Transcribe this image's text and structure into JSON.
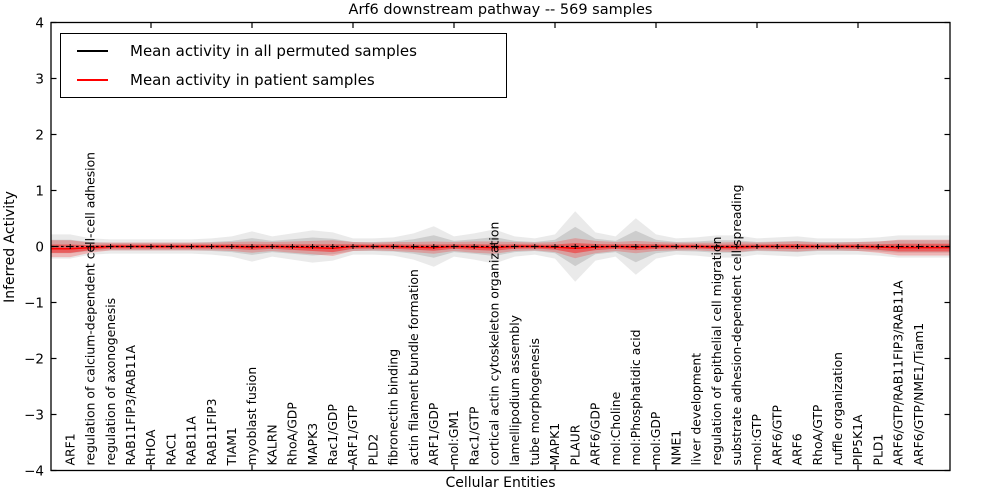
{
  "chart_data": {
    "type": "line",
    "title": "Arf6 downstream pathway -- 569 samples",
    "xlabel": "Cellular Entities",
    "ylabel": "Inferred Activity",
    "ylim": [
      -4,
      4
    ],
    "yticks": [
      -4,
      -3,
      -2,
      -1,
      0,
      1,
      2,
      3,
      4
    ],
    "xtick_positions": [
      5,
      10,
      15,
      20,
      25,
      30,
      35,
      40
    ],
    "grid": false,
    "legend_position": "upper-left",
    "legend": [
      {
        "label": "Mean activity in all permuted samples",
        "color": "#000000"
      },
      {
        "label": "Mean activity in patient samples",
        "color": "#ff0000"
      }
    ],
    "categories": [
      "ARF1",
      "regulation of calcium-dependent cell-cell adhesion",
      "regulation of axonogenesis",
      "RAB11FIP3/RAB11A",
      "RHOA",
      "RAC1",
      "RAB11A",
      "RAB11FIP3",
      "TIAM1",
      "myoblast fusion",
      "KALRN",
      "RhoA/GDP",
      "MAPK3",
      "Rac1/GDP",
      "ARF1/GTP",
      "PLD2",
      "fibronectin binding",
      "actin filament bundle formation",
      "ARF1/GDP",
      "mol:GM1",
      "Rac1/GTP",
      "cortical actin cytoskeleton organization",
      "lamellipodium assembly",
      "tube morphogenesis",
      "MAPK1",
      "PLAUR",
      "ARF6/GDP",
      "mol:Choline",
      "mol:Phosphatidic acid",
      "mol:GDP",
      "NME1",
      "liver development",
      "regulation of epithelial cell migration",
      "substrate adhesion-dependent cell spreading",
      "mol:GTP",
      "ARF6/GTP",
      "ARF6",
      "RhoA/GTP",
      "ruffle organization",
      "PIP5K1A",
      "PLD1",
      "ARF6/GTP/RAB11FIP3/RAB11A",
      "ARF6/GTP/NME1/Tiam1"
    ],
    "series": [
      {
        "name": "Mean activity in all permuted samples",
        "color": "#000000",
        "style": "dashed-with-plus-markers",
        "values": [
          0,
          0,
          0,
          0,
          0,
          0,
          0,
          0,
          0,
          0,
          0,
          0,
          0,
          0,
          0,
          0,
          0,
          0,
          0,
          0,
          0,
          0,
          0,
          0,
          0,
          0,
          0,
          0,
          0,
          0,
          0,
          0,
          0,
          0,
          0,
          0,
          0,
          0,
          0,
          0,
          0,
          0,
          0
        ],
        "band": [
          0.12,
          0.08,
          0.07,
          0.07,
          0.07,
          0.07,
          0.07,
          0.08,
          0.1,
          0.15,
          0.1,
          0.13,
          0.16,
          0.14,
          0.08,
          0.08,
          0.09,
          0.13,
          0.2,
          0.1,
          0.13,
          0.17,
          0.1,
          0.08,
          0.12,
          0.35,
          0.14,
          0.1,
          0.28,
          0.12,
          0.08,
          0.09,
          0.11,
          0.11,
          0.08,
          0.09,
          0.1,
          0.08,
          0.08,
          0.08,
          0.09,
          0.11,
          0.11
        ]
      },
      {
        "name": "Mean activity in patient samples",
        "color": "#ff0000",
        "style": "solid",
        "values": [
          -0.04,
          -0.02,
          0,
          0,
          0,
          0,
          0,
          0,
          0,
          -0.01,
          0,
          -0.01,
          -0.02,
          -0.03,
          0,
          0,
          0,
          -0.01,
          -0.02,
          0,
          -0.01,
          -0.02,
          0,
          0,
          -0.01,
          -0.03,
          -0.01,
          0,
          -0.01,
          0,
          0,
          0,
          -0.01,
          -0.01,
          0,
          0,
          0,
          0,
          0,
          0,
          -0.01,
          -0.02,
          -0.02
        ],
        "band": [
          0.15,
          0.09,
          0.07,
          0.07,
          0.07,
          0.07,
          0.07,
          0.07,
          0.08,
          0.1,
          0.08,
          0.1,
          0.12,
          0.14,
          0.08,
          0.07,
          0.08,
          0.09,
          0.11,
          0.08,
          0.1,
          0.11,
          0.08,
          0.07,
          0.09,
          0.18,
          0.11,
          0.08,
          0.11,
          0.08,
          0.07,
          0.07,
          0.08,
          0.09,
          0.07,
          0.08,
          0.09,
          0.07,
          0.07,
          0.08,
          0.1,
          0.14,
          0.14
        ]
      }
    ]
  }
}
